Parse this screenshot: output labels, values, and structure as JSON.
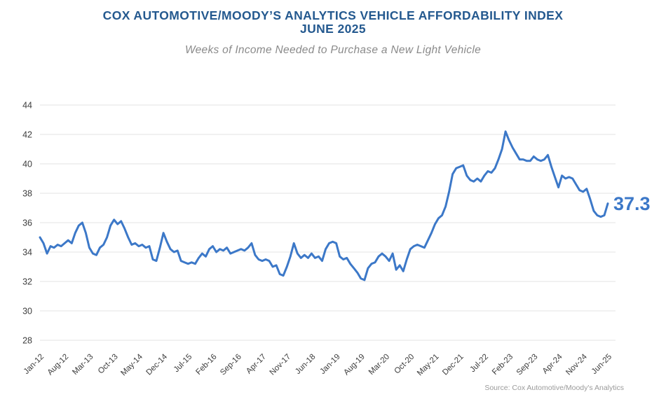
{
  "header": {
    "title_line1": "COX AUTOMOTIVE/MOODY’S ANALYTICS VEHICLE AFFORDABILITY INDEX",
    "title_line2": "JUNE 2025",
    "subtitle": "Weeks of Income Needed to Purchase a New Light Vehicle"
  },
  "footer": {
    "source": "Source: Cox Automotive/Moody's Analytics"
  },
  "chart_data": {
    "type": "line",
    "title": "Cox Automotive/Moody's Analytics Vehicle Affordability Index — June 2025",
    "ylabel": "Weeks of income needed to purchase a new light vehicle",
    "x_frequency": "monthly",
    "x_start": "Jan-12",
    "x_end": "Jun-25",
    "x_tick_every": 7,
    "x_tick_labels": [
      "Jan-12",
      "Aug-12",
      "Mar-13",
      "Oct-13",
      "May-14",
      "Dec-14",
      "Jul-15",
      "Feb-16",
      "Sep-16",
      "Apr-17",
      "Nov-17",
      "Jun-18",
      "Jan-19",
      "Aug-19",
      "Mar-20",
      "Oct-20",
      "May-21",
      "Dec-21",
      "Jul-22",
      "Feb-23",
      "Sep-23",
      "Apr-24",
      "Nov-24",
      "Jun-25"
    ],
    "y_ticks": [
      44,
      42,
      40,
      38,
      36,
      34,
      32,
      30,
      28
    ],
    "ylim": [
      28,
      44
    ],
    "grid": "horizontal",
    "legend": "none",
    "end_label": "37.3",
    "latest_point": {
      "x": "Jun-25",
      "value": 37.3
    },
    "peak_point": {
      "x": "Jan-23",
      "value": 42.2
    },
    "series": [
      {
        "name": "Weeks of income needed",
        "values": [
          35.0,
          34.6,
          33.9,
          34.4,
          34.3,
          34.5,
          34.4,
          34.6,
          34.8,
          34.6,
          35.3,
          35.8,
          36.0,
          35.3,
          34.3,
          33.9,
          33.8,
          34.3,
          34.5,
          35.0,
          35.8,
          36.2,
          35.9,
          36.1,
          35.6,
          35.0,
          34.5,
          34.6,
          34.4,
          34.5,
          34.3,
          34.4,
          33.5,
          33.4,
          34.3,
          35.3,
          34.7,
          34.2,
          34.0,
          34.1,
          33.4,
          33.3,
          33.2,
          33.3,
          33.2,
          33.6,
          33.9,
          33.7,
          34.2,
          34.4,
          34.0,
          34.2,
          34.1,
          34.3,
          33.9,
          34.0,
          34.1,
          34.2,
          34.1,
          34.3,
          34.6,
          33.8,
          33.5,
          33.4,
          33.5,
          33.4,
          33.0,
          33.1,
          32.5,
          32.4,
          33.0,
          33.7,
          34.6,
          33.9,
          33.6,
          33.8,
          33.6,
          33.9,
          33.6,
          33.7,
          33.4,
          34.2,
          34.6,
          34.7,
          34.6,
          33.7,
          33.5,
          33.6,
          33.2,
          32.9,
          32.6,
          32.2,
          32.1,
          32.9,
          33.2,
          33.3,
          33.7,
          33.9,
          33.7,
          33.4,
          33.9,
          32.8,
          33.1,
          32.7,
          33.5,
          34.2,
          34.4,
          34.5,
          34.4,
          34.3,
          34.8,
          35.3,
          35.9,
          36.3,
          36.5,
          37.1,
          38.1,
          39.3,
          39.7,
          39.8,
          39.9,
          39.2,
          38.9,
          38.8,
          39.0,
          38.8,
          39.2,
          39.5,
          39.4,
          39.7,
          40.3,
          41.0,
          42.2,
          41.6,
          41.1,
          40.7,
          40.3,
          40.3,
          40.2,
          40.2,
          40.5,
          40.3,
          40.2,
          40.3,
          40.6,
          39.8,
          39.1,
          38.4,
          39.2,
          39.0,
          39.1,
          39.0,
          38.6,
          38.2,
          38.1,
          38.3,
          37.6,
          36.8,
          36.5,
          36.4,
          36.5,
          37.3
        ]
      }
    ],
    "colors": {
      "line": "#3c78c8",
      "end_label": "#3c78c8",
      "title": "#24598f",
      "subtitle": "#8a8a8a",
      "axis_text": "#3d3d3d",
      "gridline": "#e3e3e3",
      "source": "#9b9b9b"
    }
  }
}
